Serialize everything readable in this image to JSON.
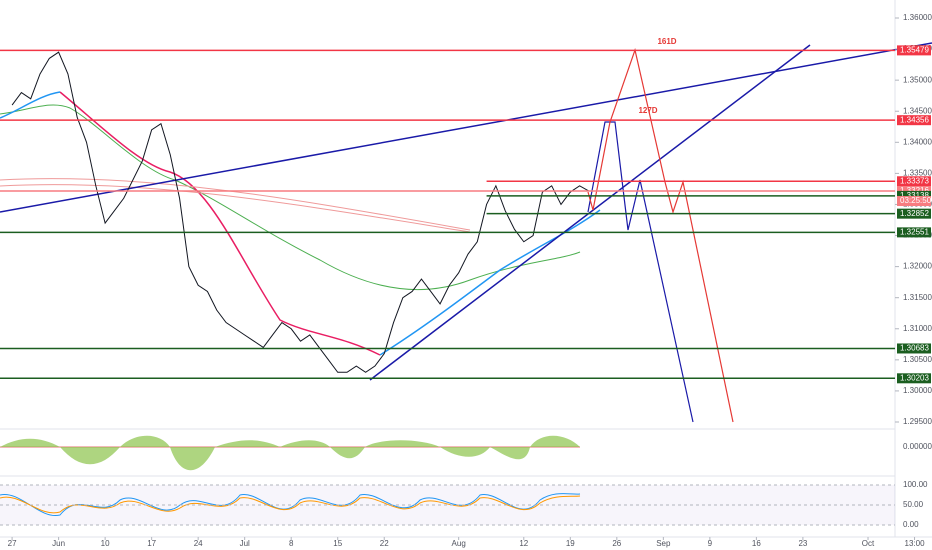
{
  "chart_data": {
    "type": "line",
    "x": [
      0,
      1,
      2,
      3,
      4,
      5,
      6,
      7,
      8,
      9,
      10,
      11,
      12,
      13,
      14,
      15,
      16,
      17,
      18,
      19,
      20,
      21,
      22,
      23,
      24,
      25,
      26,
      27,
      28,
      29,
      30,
      31,
      32,
      33,
      34,
      35,
      36,
      37,
      38,
      39,
      40,
      41,
      42,
      43,
      44,
      45,
      46,
      47,
      48,
      49,
      50,
      51,
      52,
      53,
      54,
      55,
      56,
      57,
      58,
      59,
      60,
      61,
      62
    ],
    "series": [
      {
        "color": "#131722",
        "values": [
          1.346,
          1.348,
          1.347,
          1.351,
          1.3535,
          1.3545,
          1.351,
          1.344,
          1.34,
          1.333,
          1.327,
          1.329,
          1.331,
          1.334,
          1.337,
          1.342,
          1.343,
          1.338,
          1.331,
          1.32,
          1.317,
          1.316,
          1.313,
          1.311,
          1.31,
          1.309,
          1.308,
          1.307,
          1.309,
          1.311,
          1.31,
          1.308,
          1.309,
          1.307,
          1.305,
          1.303,
          1.303,
          1.304,
          1.303,
          1.304,
          1.306,
          1.311,
          1.315,
          1.316,
          1.318,
          1.316,
          1.314,
          1.317,
          1.319,
          1.322,
          1.324,
          1.33,
          1.333,
          1.329,
          1.326,
          1.324,
          1.325,
          1.332,
          1.333,
          1.33,
          1.332,
          1.333,
          1.33216
        ]
      }
    ],
    "xlim": [
      -1.3,
      94.9
    ],
    "xticks": [
      {
        "value": 0,
        "label": "27"
      },
      {
        "value": 5,
        "label": "Jun"
      },
      {
        "value": 10,
        "label": "10"
      },
      {
        "value": 15,
        "label": "17"
      },
      {
        "value": 20,
        "label": "24"
      },
      {
        "value": 25,
        "label": "Jul"
      },
      {
        "value": 30,
        "label": "8"
      },
      {
        "value": 35,
        "label": "15"
      },
      {
        "value": 40,
        "label": "22"
      },
      {
        "value": 48,
        "label": "Aug"
      },
      {
        "value": 55,
        "label": "12"
      },
      {
        "value": 60,
        "label": "19"
      },
      {
        "value": 65,
        "label": "26"
      },
      {
        "value": 70,
        "label": "Sep"
      },
      {
        "value": 75,
        "label": "9"
      },
      {
        "value": 80,
        "label": "16"
      },
      {
        "value": 85,
        "label": "23"
      },
      {
        "value": 92,
        "label": "Oct"
      },
      {
        "value": 97,
        "label": "13:00"
      }
    ],
    "ylim": [
      1.295,
      1.36
    ],
    "yticks": [
      {
        "value": 1.295,
        "label": "1.29500"
      },
      {
        "value": 1.3,
        "label": "1.30000"
      },
      {
        "value": 1.305,
        "label": "1.30500"
      },
      {
        "value": 1.31,
        "label": "1.31000"
      },
      {
        "value": 1.315,
        "label": "1.31500"
      },
      {
        "value": 1.32,
        "label": "1.32000"
      },
      {
        "value": 1.325,
        "label": "1.32500"
      },
      {
        "value": 1.33,
        "label": "1.33000"
      },
      {
        "value": 1.335,
        "label": "1.33500"
      },
      {
        "value": 1.34,
        "label": "1.34000"
      },
      {
        "value": 1.345,
        "label": "1.34500"
      },
      {
        "value": 1.35,
        "label": "1.35000"
      },
      {
        "value": 1.355,
        "label": "1.35500"
      },
      {
        "value": 1.36,
        "label": "1.36000"
      }
    ],
    "levels": [
      {
        "value": 1.35479,
        "color": "#f23645"
      },
      {
        "value": 1.34356,
        "color": "#f23645"
      },
      {
        "value": 1.33373,
        "color": "#f23645",
        "start": 51
      },
      {
        "value": 1.33216,
        "color": "#f77c80"
      },
      {
        "value": 1.33138,
        "color": "#1b5e20",
        "start": 51
      },
      {
        "value": 1.32852,
        "color": "#1b5e20",
        "start": 51
      },
      {
        "value": 1.32551,
        "color": "#1b5e20"
      },
      {
        "value": 1.30683,
        "color": "#1b5e20"
      },
      {
        "value": 1.30203,
        "color": "#1b5e20"
      }
    ],
    "countdown": "03:25:50",
    "annotations": [
      "161D",
      "127D"
    ],
    "osc_yticks": [
      {
        "value": 0,
        "label": "0.00000"
      }
    ],
    "stoch_yticks": [
      {
        "value": 100,
        "label": "100.00"
      },
      {
        "value": 50,
        "label": "50.00"
      },
      {
        "value": 0,
        "label": "0.00"
      }
    ]
  }
}
